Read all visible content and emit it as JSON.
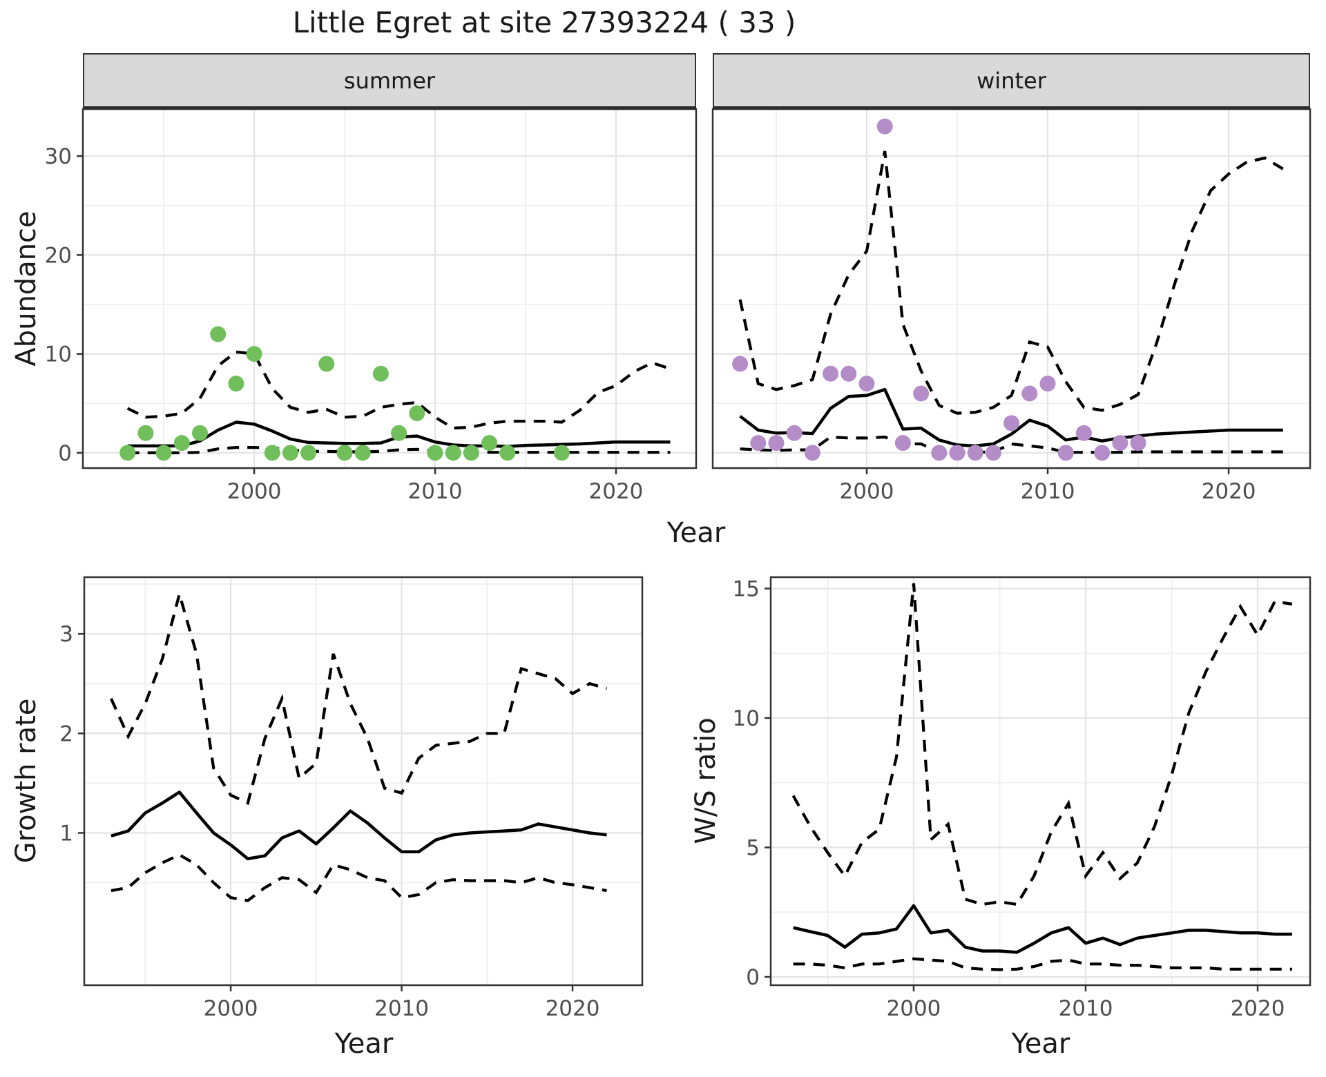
{
  "title": "Little Egret at site 27393224 ( 33 )",
  "facets": {
    "summer_label": "summer",
    "winter_label": "winter"
  },
  "axis_labels": {
    "abundance": "Abundance",
    "year_top": "Year",
    "growth_rate": "Growth rate",
    "year_growth": "Year",
    "ws_ratio": "W/S ratio",
    "year_ws": "Year"
  },
  "colors": {
    "summer_points": "#70bf5b",
    "winter_points": "#b48cc8",
    "line": "#000000",
    "strip_bg": "#d9d9d9",
    "grid_major": "#e4e4e4",
    "grid_minor": "#f0f0f0",
    "border": "#333333",
    "tick_label": "#4d4d4d",
    "text": "#1a1a1a"
  },
  "chart_data": [
    {
      "id": "summer",
      "type": "line",
      "facet": "summer",
      "xlabel": "Year",
      "ylabel": "Abundance",
      "xlim": [
        1990.53,
        2024.43
      ],
      "ylim": [
        -1.54,
        34.75
      ],
      "xticks": [
        2000,
        2010,
        2020
      ],
      "yticks": [
        0,
        10,
        20,
        30
      ],
      "xminor": [
        1995,
        2005,
        2015
      ],
      "yminor": [
        5,
        15,
        25
      ],
      "point_color": "#70bf5b",
      "points": [
        [
          1993,
          0
        ],
        [
          1994,
          2
        ],
        [
          1995,
          0
        ],
        [
          1996,
          1
        ],
        [
          1997,
          2
        ],
        [
          1998,
          12
        ],
        [
          1999,
          7
        ],
        [
          2000,
          10
        ],
        [
          2001,
          0
        ],
        [
          2002,
          0
        ],
        [
          2003,
          0
        ],
        [
          2004,
          9
        ],
        [
          2005,
          0
        ],
        [
          2006,
          0
        ],
        [
          2007,
          8
        ],
        [
          2008,
          2
        ],
        [
          2009,
          4
        ],
        [
          2010,
          0
        ],
        [
          2011,
          0
        ],
        [
          2012,
          0
        ],
        [
          2013,
          1
        ],
        [
          2014,
          0
        ],
        [
          2017,
          0
        ]
      ],
      "median": {
        "x0": 1993,
        "values": [
          0.7,
          0.7,
          0.7,
          0.7,
          1.2,
          2.3,
          3.1,
          2.9,
          2.2,
          1.4,
          1.05,
          1.0,
          0.95,
          0.95,
          1.0,
          1.6,
          1.7,
          1.1,
          0.8,
          0.7,
          0.7,
          0.65,
          0.75,
          0.8,
          0.85,
          0.9,
          1.0,
          1.1,
          1.1,
          1.1,
          1.1
        ]
      },
      "upper": {
        "x0": 1993,
        "values": [
          4.5,
          3.6,
          3.7,
          4.0,
          5.5,
          8.8,
          10.2,
          10.0,
          6.5,
          4.6,
          4.1,
          4.4,
          3.6,
          3.7,
          4.6,
          4.9,
          5.1,
          3.6,
          2.5,
          2.6,
          3.0,
          3.2,
          3.2,
          3.2,
          3.1,
          4.3,
          6.1,
          6.8,
          8.2,
          9.1,
          8.5
        ]
      },
      "lower": {
        "x0": 1993,
        "values": [
          0,
          0,
          0,
          0,
          0.05,
          0.4,
          0.55,
          0.55,
          0.5,
          0.3,
          0.15,
          0.15,
          0.1,
          0.1,
          0.15,
          0.3,
          0.35,
          0.2,
          0.1,
          0.05,
          0.05,
          0.05,
          0.05,
          0.05,
          0.05,
          0.05,
          0.05,
          0.05,
          0.05,
          0.05,
          0.05
        ]
      }
    },
    {
      "id": "winter",
      "type": "line",
      "facet": "winter",
      "xlabel": "Year",
      "ylabel": "Abundance",
      "xlim": [
        1991.49,
        2024.5
      ],
      "ylim": [
        -1.54,
        34.75
      ],
      "xticks": [
        2000,
        2010,
        2020
      ],
      "yticks": [],
      "xminor": [
        1995,
        2005,
        2015
      ],
      "yminor": [
        5,
        15,
        25
      ],
      "ygrid_major": [
        0,
        10,
        20,
        30
      ],
      "point_color": "#b48cc8",
      "points": [
        [
          1993,
          9
        ],
        [
          1994,
          1
        ],
        [
          1995,
          1
        ],
        [
          1996,
          2
        ],
        [
          1997,
          0
        ],
        [
          1998,
          8
        ],
        [
          1999,
          8
        ],
        [
          2000,
          7
        ],
        [
          2001,
          33
        ],
        [
          2002,
          1
        ],
        [
          2003,
          6
        ],
        [
          2004,
          0
        ],
        [
          2005,
          0
        ],
        [
          2006,
          0
        ],
        [
          2007,
          0
        ],
        [
          2008,
          3
        ],
        [
          2009,
          6
        ],
        [
          2010,
          7
        ],
        [
          2011,
          0
        ],
        [
          2012,
          2
        ],
        [
          2013,
          0
        ],
        [
          2014,
          1
        ],
        [
          2015,
          1
        ]
      ],
      "median": {
        "x0": 1993,
        "values": [
          3.7,
          2.3,
          2.0,
          2.05,
          1.95,
          4.5,
          5.7,
          5.8,
          6.4,
          2.4,
          2.5,
          1.3,
          0.8,
          0.7,
          0.9,
          1.9,
          3.3,
          2.7,
          1.3,
          1.6,
          1.2,
          1.5,
          1.7,
          1.9,
          2.0,
          2.1,
          2.2,
          2.3,
          2.3,
          2.3,
          2.3
        ]
      },
      "upper": {
        "x0": 1993,
        "values": [
          15.5,
          7.0,
          6.4,
          6.8,
          7.4,
          14.0,
          18.0,
          20.4,
          30.5,
          13.0,
          8.3,
          4.8,
          4.0,
          4.1,
          4.6,
          5.8,
          11.2,
          10.7,
          7.2,
          4.6,
          4.3,
          4.9,
          5.9,
          11.0,
          17.0,
          22.5,
          26.5,
          28.2,
          29.4,
          29.8,
          28.7
        ]
      },
      "lower": {
        "x0": 1993,
        "values": [
          0.4,
          0.3,
          0.25,
          0.3,
          0.3,
          1.6,
          1.5,
          1.5,
          1.6,
          0.9,
          0.9,
          0.1,
          0.05,
          0.05,
          0.1,
          0.9,
          0.7,
          0.5,
          0.05,
          0.05,
          0.05,
          0.05,
          0.1,
          0.1,
          0.1,
          0.1,
          0.1,
          0.1,
          0.1,
          0.1,
          0.1
        ]
      }
    },
    {
      "id": "growth",
      "type": "line",
      "xlabel": "Year",
      "ylabel": "Growth rate",
      "xlim": [
        1991.43,
        2024.08
      ],
      "ylim": [
        -0.53,
        3.57
      ],
      "xticks": [
        2000,
        2010,
        2020
      ],
      "yticks": [
        1,
        2,
        3
      ],
      "xminor": [
        1995,
        2005,
        2015
      ],
      "yminor": [
        0.5,
        1.5,
        2.5,
        3.5
      ],
      "points": [],
      "median": {
        "x0": 1993,
        "values": [
          0.97,
          1.02,
          1.2,
          1.3,
          1.41,
          1.2,
          1.0,
          0.88,
          0.74,
          0.77,
          0.95,
          1.02,
          0.89,
          1.05,
          1.22,
          1.1,
          0.95,
          0.81,
          0.81,
          0.93,
          0.98,
          1.0,
          1.01,
          1.02,
          1.03,
          1.09,
          1.06,
          1.03,
          1.0,
          0.98
        ]
      },
      "upper": {
        "x0": 1993,
        "values": [
          2.35,
          1.97,
          2.3,
          2.75,
          3.4,
          2.8,
          1.65,
          1.38,
          1.3,
          1.95,
          2.35,
          1.55,
          1.7,
          2.8,
          2.3,
          1.95,
          1.45,
          1.4,
          1.75,
          1.88,
          1.9,
          1.92,
          2.0,
          2.0,
          2.65,
          2.6,
          2.55,
          2.4,
          2.5,
          2.45
        ]
      },
      "lower": {
        "x0": 1993,
        "values": [
          0.42,
          0.45,
          0.6,
          0.7,
          0.78,
          0.68,
          0.5,
          0.35,
          0.32,
          0.45,
          0.55,
          0.53,
          0.4,
          0.68,
          0.63,
          0.55,
          0.52,
          0.35,
          0.38,
          0.5,
          0.53,
          0.52,
          0.52,
          0.52,
          0.5,
          0.55,
          0.5,
          0.48,
          0.45,
          0.42
        ]
      }
    },
    {
      "id": "ws",
      "type": "line",
      "xlabel": "Year",
      "ylabel": "W/S ratio",
      "xlim": [
        1991.69,
        2023.05
      ],
      "ylim": [
        -0.32,
        15.44
      ],
      "xticks": [
        2000,
        2010,
        2020
      ],
      "yticks": [
        0,
        5,
        10,
        15
      ],
      "xminor": [
        1995,
        2005,
        2015
      ],
      "yminor": [
        2.5,
        7.5,
        12.5
      ],
      "points": [],
      "median": {
        "x0": 1993,
        "values": [
          1.9,
          1.75,
          1.6,
          1.15,
          1.65,
          1.7,
          1.85,
          2.75,
          1.7,
          1.8,
          1.15,
          1.0,
          1.0,
          0.95,
          1.3,
          1.7,
          1.9,
          1.3,
          1.5,
          1.25,
          1.5,
          1.6,
          1.7,
          1.8,
          1.8,
          1.75,
          1.7,
          1.7,
          1.65,
          1.65
        ]
      },
      "upper": {
        "x0": 1993,
        "values": [
          7.0,
          5.8,
          4.8,
          3.9,
          5.2,
          5.7,
          8.5,
          15.2,
          5.3,
          5.9,
          3.0,
          2.8,
          2.9,
          2.8,
          3.9,
          5.6,
          6.7,
          3.9,
          4.8,
          3.8,
          4.4,
          5.8,
          7.8,
          10.2,
          11.8,
          13.1,
          14.3,
          13.2,
          14.5,
          14.4
        ]
      },
      "lower": {
        "x0": 1993,
        "values": [
          0.5,
          0.5,
          0.45,
          0.35,
          0.5,
          0.5,
          0.6,
          0.7,
          0.65,
          0.6,
          0.35,
          0.3,
          0.28,
          0.3,
          0.4,
          0.6,
          0.65,
          0.5,
          0.5,
          0.45,
          0.45,
          0.4,
          0.35,
          0.35,
          0.35,
          0.3,
          0.3,
          0.3,
          0.3,
          0.3
        ]
      }
    }
  ]
}
